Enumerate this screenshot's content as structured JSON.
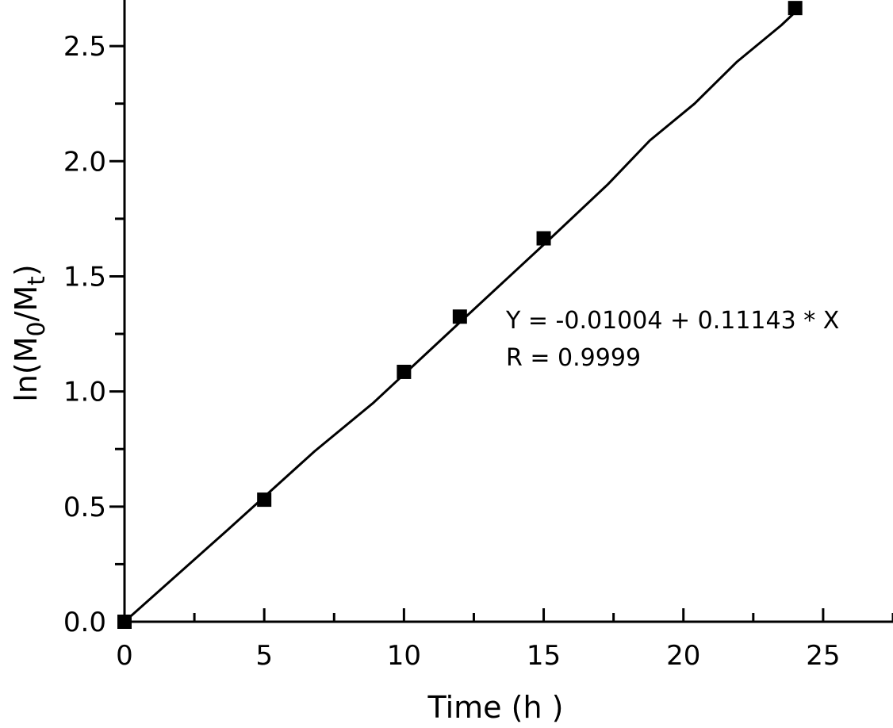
{
  "chart_data": {
    "type": "scatter",
    "xlabel": "Time (h )",
    "ylabel_parts": [
      "ln(M",
      "0",
      "/M",
      "t",
      ")"
    ],
    "xlim": [
      0,
      27.5
    ],
    "ylim": [
      0,
      2.7
    ],
    "x_ticks": [
      0,
      5,
      10,
      15,
      20,
      25
    ],
    "x_tick_labels": [
      "0",
      "5",
      "10",
      "15",
      "20",
      "25"
    ],
    "y_ticks": [
      0.0,
      0.5,
      1.0,
      1.5,
      2.0,
      2.5
    ],
    "y_tick_labels": [
      "0.0",
      "0.5",
      "1.0",
      "1.5",
      "2.0",
      "2.5"
    ],
    "grid": false,
    "series": [
      {
        "marker": "square",
        "x": [
          0,
          5,
          10,
          12,
          15,
          24
        ],
        "y": [
          0.0,
          0.53,
          1.085,
          1.325,
          1.665,
          2.665
        ]
      }
    ],
    "fit_line": {
      "x": [
        0,
        3.7,
        6.8,
        8.9,
        12.0,
        15.2,
        17.3,
        18.8,
        20.4,
        21.9,
        23.5,
        24.2
      ],
      "y": [
        0.0,
        0.4,
        0.74,
        0.95,
        1.3,
        1.66,
        1.9,
        2.09,
        2.25,
        2.43,
        2.59,
        2.67
      ]
    },
    "annotations": [
      "Y = -0.01004 + 0.11143 * X",
      "R = 0.9999"
    ]
  }
}
